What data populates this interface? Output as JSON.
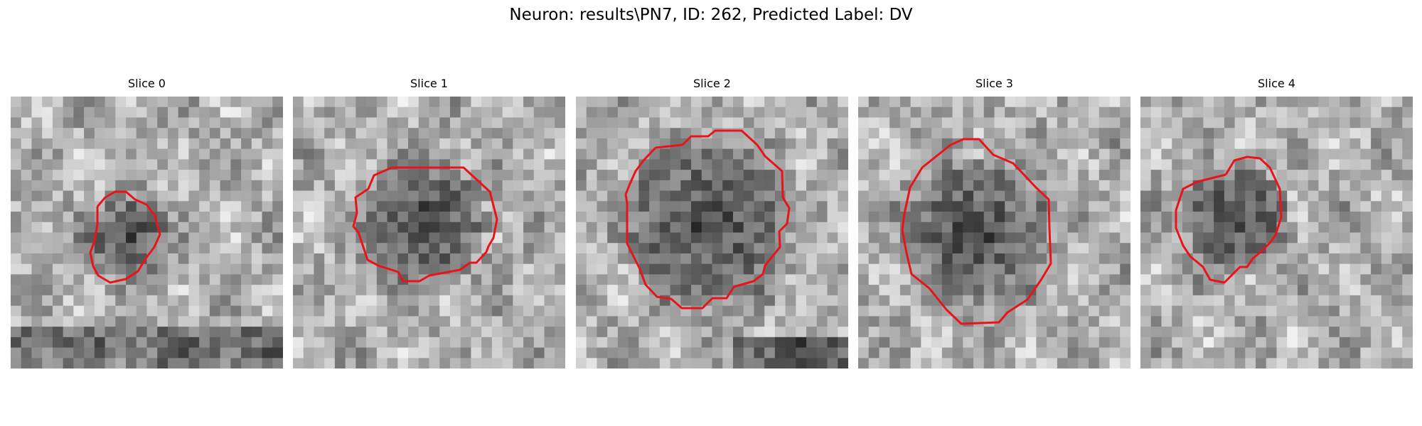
{
  "figure": {
    "title": "Neuron: results\\PN7, ID: 262, Predicted Label: DV"
  },
  "colors": {
    "background": "#ffffff",
    "contour": "#e8141a"
  },
  "panels": [
    {
      "title": "Slice 0"
    },
    {
      "title": "Slice 1"
    },
    {
      "title": "Slice 2"
    },
    {
      "title": "Slice 3"
    },
    {
      "title": "Slice 4"
    }
  ]
}
